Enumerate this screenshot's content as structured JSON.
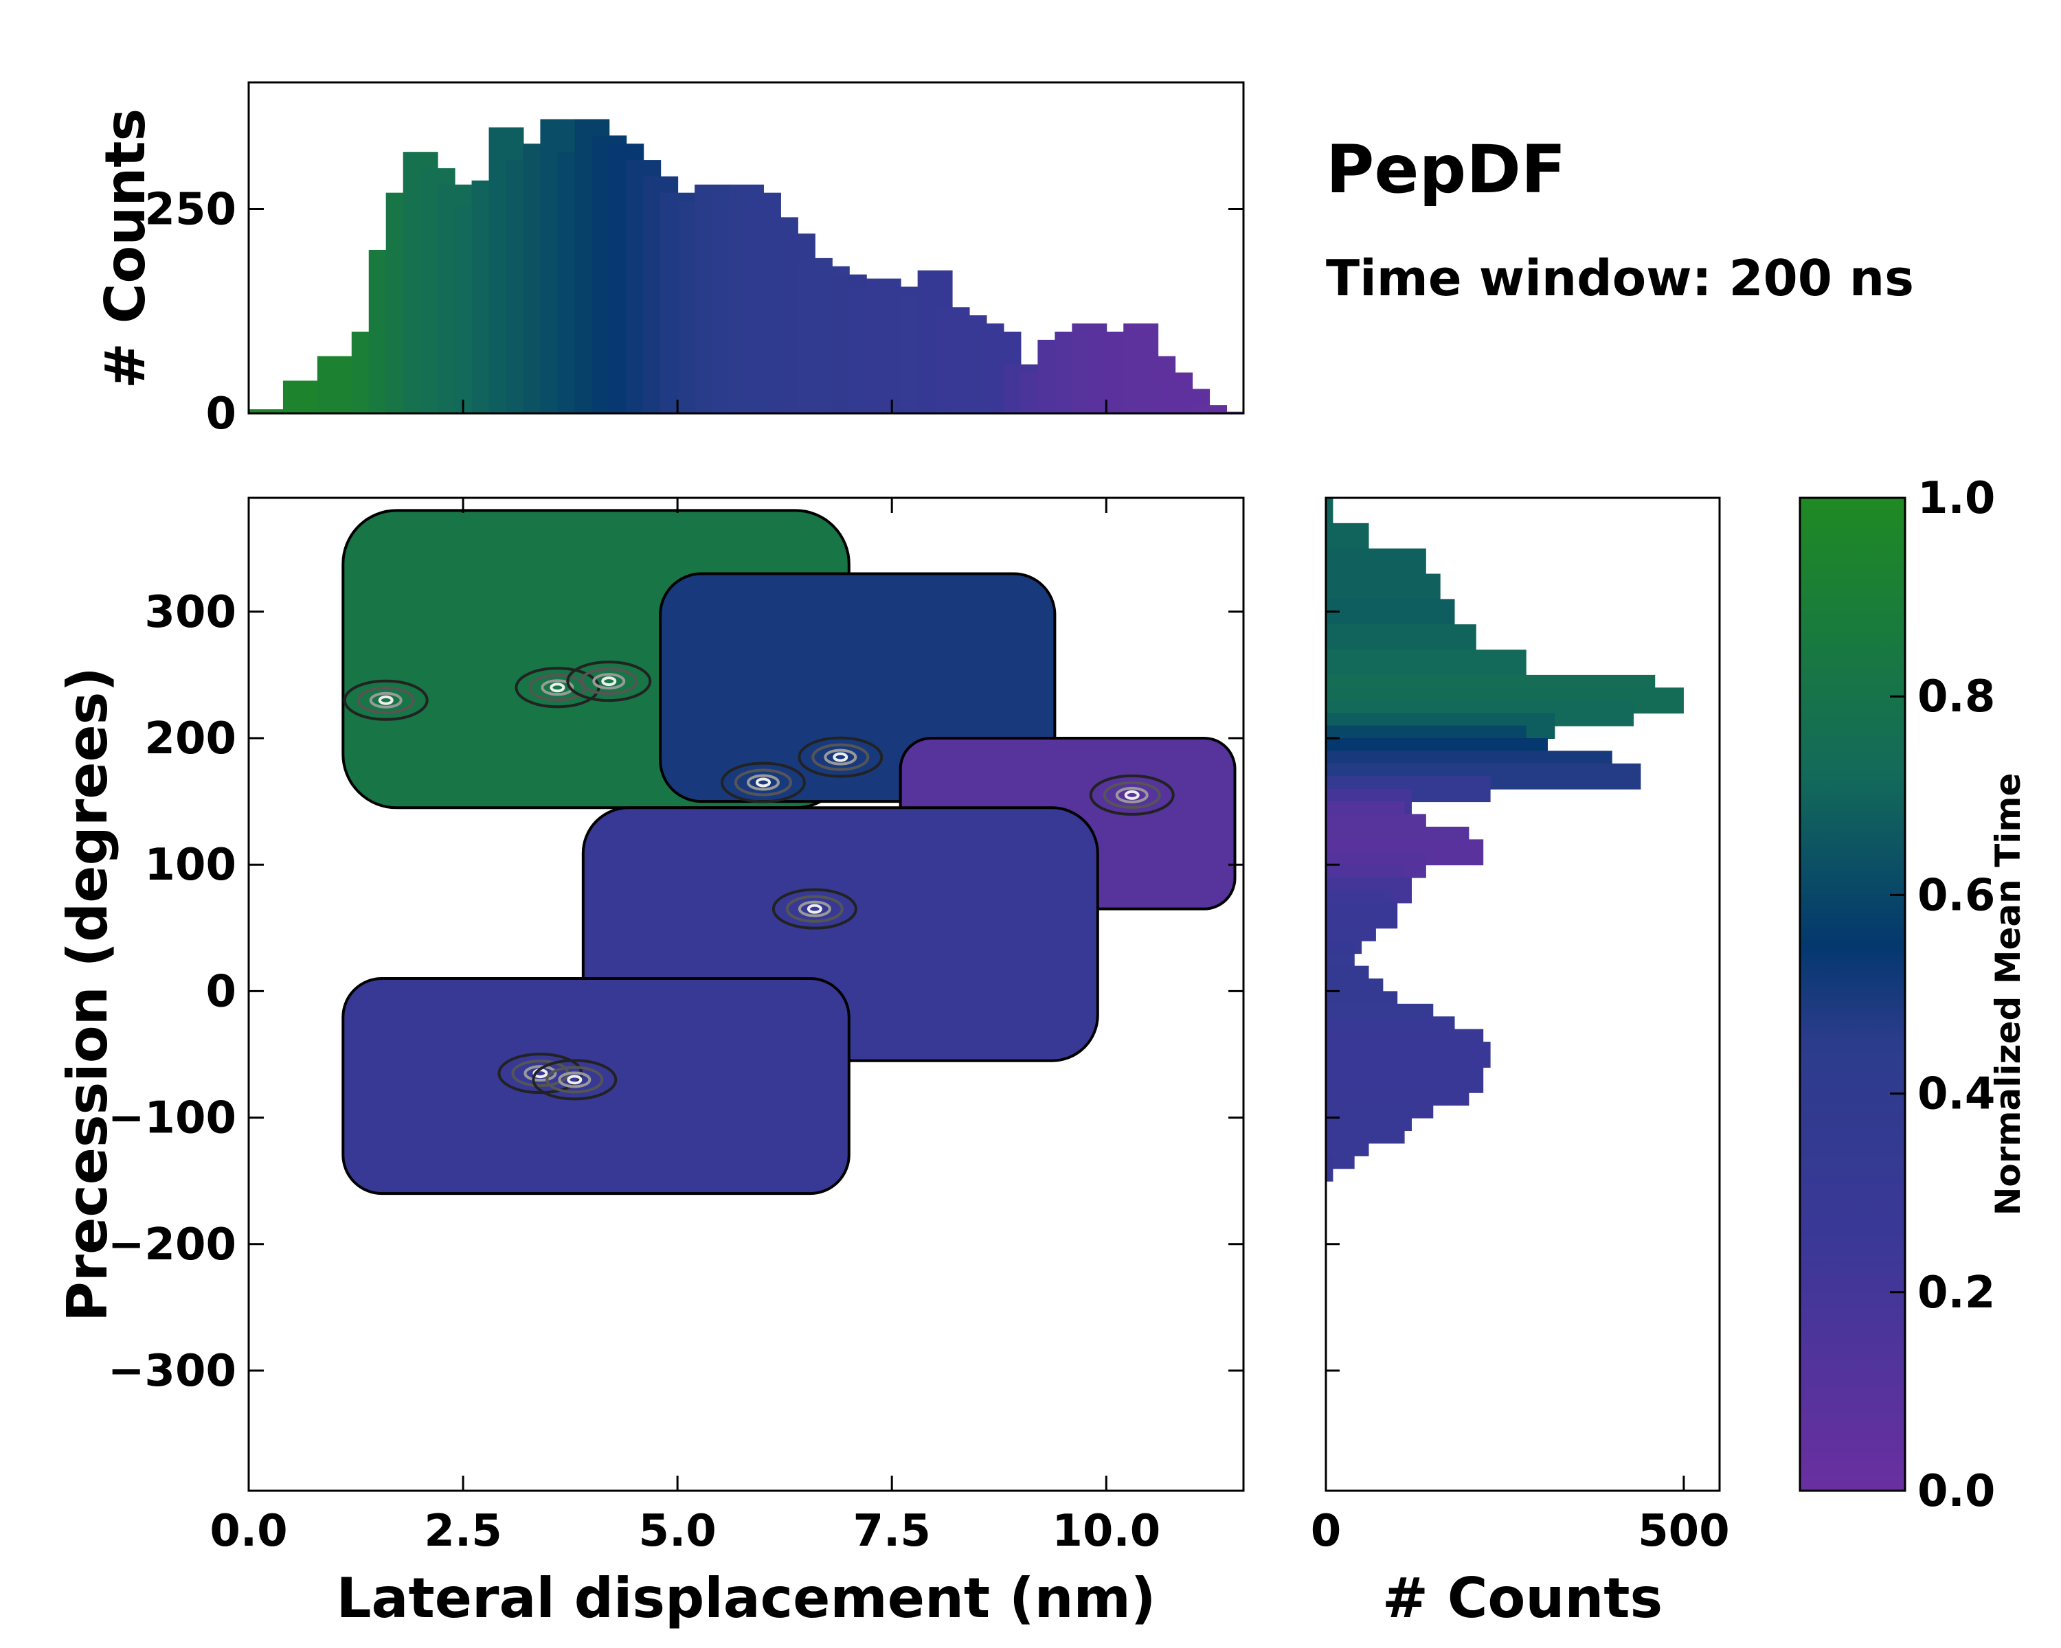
{
  "title": "PepDF",
  "subtitle": "Time window: 200 ns",
  "colormap": {
    "low": "#6a2fa0",
    "mid_low": "#2c3c8c",
    "mid": "#04386e",
    "mid_high": "#136a5a",
    "high": "#1f8a23"
  },
  "chart_data": [
    {
      "id": "main-2d",
      "type": "heatmap",
      "title": "",
      "xlabel": "Lateral displacement (nm)",
      "ylabel": "Precession (degrees)",
      "xlim": [
        0,
        11.6
      ],
      "ylim": [
        -395,
        390
      ],
      "xticks": [
        0,
        2.5,
        5,
        7.5,
        10
      ],
      "xtick_labels": [
        "0.0",
        "2.5",
        "5.0",
        "7.5",
        "10.0"
      ],
      "yticks": [
        -300,
        -200,
        -100,
        0,
        100,
        200,
        300
      ],
      "ytick_labels": [
        "−300",
        "−200",
        "−100",
        "0",
        "100",
        "200",
        "300"
      ],
      "value_label": "Normalized Mean Time",
      "regions": [
        {
          "name": "upper-green",
          "x": [
            1.1,
            7.0
          ],
          "y": [
            145,
            380
          ],
          "mean_time": 0.82
        },
        {
          "name": "upper-blue",
          "x": [
            4.8,
            9.4
          ],
          "y": [
            150,
            330
          ],
          "mean_time": 0.5
        },
        {
          "name": "right-purple",
          "x": [
            7.6,
            11.5
          ],
          "y": [
            65,
            200
          ],
          "mean_time": 0.1
        },
        {
          "name": "middle-mixed",
          "x": [
            3.9,
            9.9
          ],
          "y": [
            -55,
            145
          ],
          "mean_time": 0.3
        },
        {
          "name": "lower-blue",
          "x": [
            1.1,
            7.0
          ],
          "y": [
            -160,
            10
          ],
          "mean_time": 0.3
        }
      ],
      "density_peaks": [
        {
          "x": 1.6,
          "y": 230
        },
        {
          "x": 3.6,
          "y": 240
        },
        {
          "x": 4.2,
          "y": 245
        },
        {
          "x": 6.0,
          "y": 165
        },
        {
          "x": 6.9,
          "y": 185
        },
        {
          "x": 10.3,
          "y": 155
        },
        {
          "x": 3.4,
          "y": -65
        },
        {
          "x": 3.8,
          "y": -70
        },
        {
          "x": 6.6,
          "y": 65
        }
      ]
    },
    {
      "id": "top-hist",
      "type": "bar",
      "title": "",
      "xlabel": "",
      "ylabel": "# Counts",
      "xlim": [
        0,
        11.6
      ],
      "ylim": [
        0,
        405
      ],
      "yticks": [
        0,
        250
      ],
      "ytick_labels": [
        "0",
        "250"
      ],
      "x": [
        0.2,
        0.6,
        1.0,
        1.4,
        1.6,
        1.8,
        2.0,
        2.2,
        2.4,
        2.6,
        2.8,
        3.0,
        3.2,
        3.4,
        3.6,
        3.8,
        4.0,
        4.2,
        4.4,
        4.6,
        4.8,
        5.0,
        5.2,
        5.4,
        5.6,
        5.8,
        6.0,
        6.2,
        6.4,
        6.6,
        6.8,
        7.0,
        7.2,
        7.4,
        7.6,
        7.8,
        8.0,
        8.2,
        8.4,
        8.6,
        8.8,
        9.0,
        9.2,
        9.4,
        9.6,
        9.8,
        10.0,
        10.2,
        10.4,
        10.6,
        10.8,
        11.0,
        11.2,
        11.4
      ],
      "values": [
        5,
        40,
        70,
        100,
        200,
        270,
        320,
        300,
        280,
        255,
        285,
        350,
        310,
        330,
        360,
        320,
        360,
        340,
        330,
        310,
        290,
        270,
        260,
        280,
        270,
        280,
        270,
        240,
        220,
        190,
        180,
        170,
        155,
        165,
        155,
        145,
        175,
        130,
        120,
        110,
        100,
        60,
        50,
        90,
        100,
        110,
        100,
        100,
        110,
        70,
        50,
        30,
        10,
        2
      ],
      "mean_time": [
        0.96,
        0.95,
        0.93,
        0.9,
        0.86,
        0.82,
        0.78,
        0.76,
        0.74,
        0.72,
        0.7,
        0.68,
        0.66,
        0.64,
        0.62,
        0.6,
        0.58,
        0.56,
        0.54,
        0.52,
        0.5,
        0.48,
        0.47,
        0.46,
        0.45,
        0.44,
        0.42,
        0.41,
        0.4,
        0.39,
        0.38,
        0.37,
        0.36,
        0.35,
        0.34,
        0.33,
        0.32,
        0.31,
        0.3,
        0.29,
        0.26,
        0.2,
        0.16,
        0.14,
        0.12,
        0.1,
        0.09,
        0.08,
        0.07,
        0.07,
        0.06,
        0.06,
        0.05,
        0.05
      ]
    },
    {
      "id": "right-hist",
      "type": "bar",
      "orientation": "horizontal",
      "title": "",
      "xlabel": "# Counts",
      "ylabel": "",
      "xlim": [
        0,
        550
      ],
      "ylim": [
        -395,
        390
      ],
      "xticks": [
        0,
        500
      ],
      "xtick_labels": [
        "0",
        "500"
      ],
      "y": [
        380,
        360,
        340,
        320,
        300,
        280,
        260,
        240,
        230,
        220,
        210,
        200,
        190,
        180,
        170,
        160,
        150,
        140,
        130,
        120,
        110,
        100,
        90,
        80,
        70,
        60,
        50,
        40,
        30,
        20,
        10,
        0,
        -10,
        -20,
        -30,
        -40,
        -50,
        -60,
        -70,
        -80,
        -90,
        -100,
        -110,
        -120,
        -130,
        -140
      ],
      "values": [
        10,
        60,
        140,
        160,
        180,
        210,
        280,
        460,
        500,
        430,
        320,
        280,
        310,
        400,
        440,
        230,
        120,
        110,
        140,
        200,
        220,
        140,
        110,
        120,
        90,
        100,
        70,
        50,
        40,
        40,
        60,
        80,
        100,
        150,
        180,
        220,
        230,
        200,
        220,
        200,
        150,
        120,
        110,
        60,
        40,
        10
      ],
      "mean_time": [
        0.7,
        0.7,
        0.69,
        0.69,
        0.68,
        0.7,
        0.72,
        0.75,
        0.74,
        0.72,
        0.68,
        0.6,
        0.55,
        0.5,
        0.47,
        0.35,
        0.2,
        0.12,
        0.1,
        0.1,
        0.09,
        0.11,
        0.15,
        0.2,
        0.24,
        0.26,
        0.28,
        0.3,
        0.32,
        0.33,
        0.34,
        0.35,
        0.35,
        0.33,
        0.3,
        0.28,
        0.27,
        0.26,
        0.26,
        0.27,
        0.28,
        0.29,
        0.3,
        0.3,
        0.31,
        0.32
      ]
    },
    {
      "id": "colorbar",
      "type": "heatmap",
      "title": "",
      "label": "Normalized Mean Time",
      "range": [
        0.0,
        1.0
      ],
      "ticks": [
        0.0,
        0.2,
        0.4,
        0.6,
        0.8,
        1.0
      ],
      "tick_labels": [
        "0.0",
        "0.2",
        "0.4",
        "0.6",
        "0.8",
        "1.0"
      ]
    }
  ]
}
